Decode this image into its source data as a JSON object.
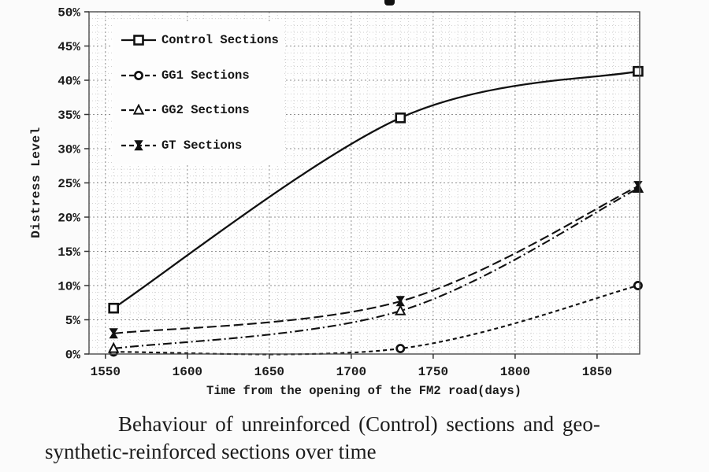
{
  "chart_data": {
    "type": "line",
    "xlabel": "Time from the opening of the FM2 road(days)",
    "ylabel": "Distress Level",
    "x": [
      1555,
      1730,
      1875
    ],
    "series": [
      {
        "name": "Control Sections",
        "marker": "square",
        "line_style": "solid",
        "values": [
          6.7,
          34.5,
          41.3
        ]
      },
      {
        "name": "GG1 Sections",
        "marker": "circle",
        "line_style": "dash",
        "values": [
          0.3,
          0.8,
          10.0
        ]
      },
      {
        "name": "GG2 Sections",
        "marker": "triangle",
        "line_style": "dashdot",
        "values": [
          0.8,
          6.3,
          24.2
        ]
      },
      {
        "name": "GT Sections",
        "marker": "solid-x",
        "line_style": "longdash",
        "values": [
          3.0,
          7.7,
          24.5
        ]
      }
    ],
    "xlim": [
      1540,
      1876
    ],
    "ylim": [
      0,
      50
    ],
    "x_ticks": [
      1550,
      1600,
      1650,
      1700,
      1750,
      1800,
      1850
    ],
    "y_ticks": [
      0,
      5,
      10,
      15,
      20,
      25,
      30,
      35,
      40,
      45,
      50
    ],
    "y_tick_suffix": "%",
    "grid": "dense dotted minor grid, dashed major grid",
    "legend_position": "top-left",
    "line_color": "#111111"
  },
  "caption": {
    "line1": "Behaviour of unreinforced (Control) sections and geo-",
    "line2": "synthetic-reinforced sections over time"
  }
}
